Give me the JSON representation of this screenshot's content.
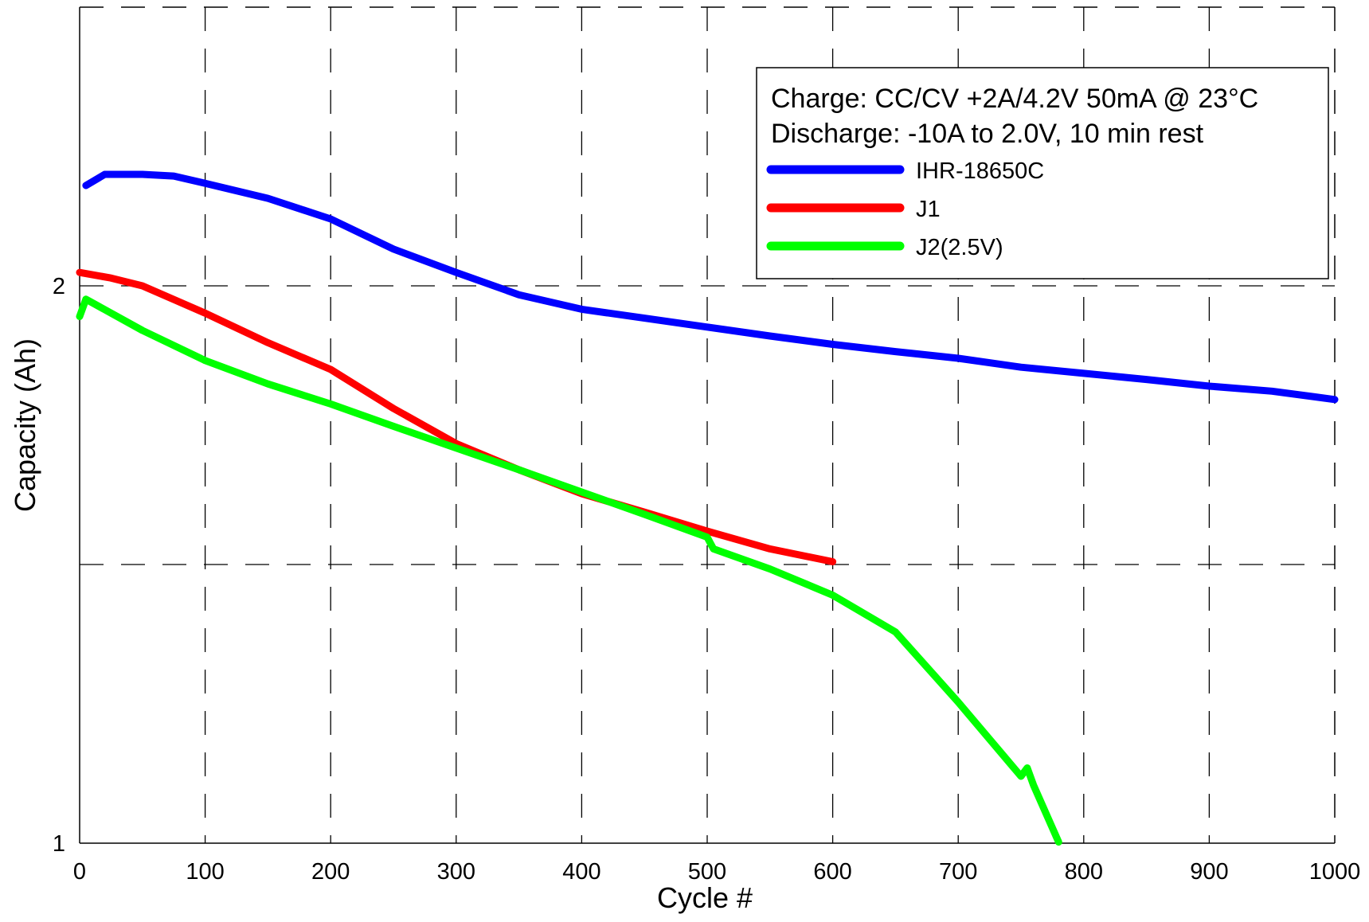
{
  "chart_data": {
    "type": "line",
    "xlabel": "Cycle #",
    "ylabel": "Capacity (Ah)",
    "xlim": [
      0,
      1000
    ],
    "xticks": [
      0,
      100,
      200,
      300,
      400,
      500,
      600,
      700,
      800,
      900,
      1000
    ],
    "ylim": [
      1,
      2.5
    ],
    "yticks": [
      1,
      2
    ],
    "ygrid": [
      1.5,
      2
    ],
    "grid": true,
    "legend_notes": [
      "Charge: CC/CV +2A/4.2V 50mA @ 23°C",
      "Discharge: -10A to 2.0V, 10 min rest"
    ],
    "legend": "upper right",
    "series": [
      {
        "name": "IHR-18650C",
        "color": "#0000ff",
        "x": [
          5,
          20,
          50,
          75,
          100,
          150,
          200,
          250,
          300,
          350,
          400,
          450,
          500,
          550,
          600,
          650,
          700,
          750,
          800,
          850,
          900,
          950,
          1000
        ],
        "values": [
          2.18,
          2.2,
          2.2,
          2.197,
          2.184,
          2.157,
          2.12,
          2.066,
          2.024,
          1.984,
          1.958,
          1.942,
          1.926,
          1.91,
          1.895,
          1.882,
          1.87,
          1.854,
          1.843,
          1.832,
          1.82,
          1.811,
          1.796
        ]
      },
      {
        "name": "J1",
        "color": "#ff0000",
        "x": [
          0,
          25,
          50,
          100,
          150,
          200,
          250,
          300,
          350,
          400,
          450,
          500,
          550,
          600
        ],
        "values": [
          2.024,
          2.014,
          2.0,
          1.951,
          1.898,
          1.85,
          1.78,
          1.717,
          1.67,
          1.627,
          1.594,
          1.56,
          1.528,
          1.505
        ]
      },
      {
        "name": "J2(2.5V)",
        "color": "#00ff00",
        "x": [
          0,
          5,
          50,
          100,
          150,
          200,
          250,
          300,
          350,
          400,
          450,
          500,
          505,
          550,
          600,
          650,
          700,
          750,
          755,
          760,
          780
        ],
        "values": [
          1.945,
          1.976,
          1.92,
          1.866,
          1.824,
          1.788,
          1.748,
          1.709,
          1.67,
          1.63,
          1.59,
          1.549,
          1.528,
          1.492,
          1.445,
          1.379,
          1.253,
          1.12,
          1.135,
          1.104,
          1.002
        ]
      }
    ]
  }
}
